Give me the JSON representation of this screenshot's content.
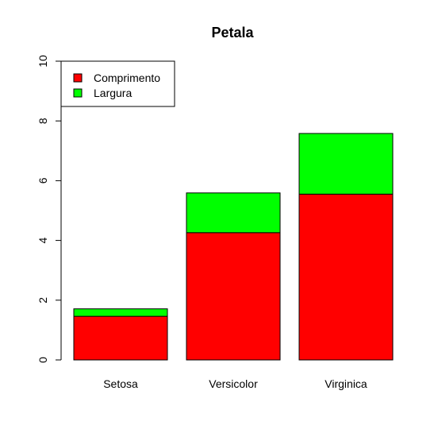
{
  "chart_data": {
    "type": "bar",
    "stacked": true,
    "title": "Petala",
    "xlabel": "",
    "ylabel": "",
    "categories": [
      "Setosa",
      "Versicolor",
      "Virginica"
    ],
    "series": [
      {
        "name": "Comprimento",
        "color": "#ff0000",
        "values": [
          1.46,
          4.26,
          5.55
        ]
      },
      {
        "name": "Largura",
        "color": "#00ff00",
        "values": [
          0.25,
          1.33,
          2.03
        ]
      }
    ],
    "ylim": [
      0,
      10
    ],
    "yticks": [
      0,
      2,
      4,
      6,
      8,
      10
    ],
    "grid": false,
    "legend_position": "top-left"
  }
}
